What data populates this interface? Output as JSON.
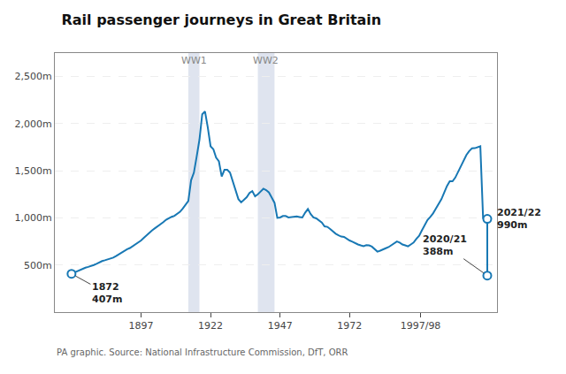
{
  "chart_data": {
    "type": "line",
    "title": "Rail passenger journeys in Great Britain",
    "source": "PA graphic. Source: National Infrastructure Commission, DfT, ORR",
    "xlim": [
      1866,
      2025
    ],
    "xticks": [
      1897,
      1922,
      1947,
      1972,
      {
        "value": 1997.5,
        "label": "1997/98"
      }
    ],
    "ylim": [
      0,
      2750
    ],
    "yticks": [
      {
        "value": 500,
        "label": "500m"
      },
      {
        "value": 1000,
        "label": "1,000m"
      },
      {
        "value": 1500,
        "label": "1,500m"
      },
      {
        "value": 2000,
        "label": "2,000m"
      },
      {
        "value": 2500,
        "label": "2,500m"
      }
    ],
    "grid": "y",
    "shaded_spans": [
      {
        "x": [
          1914,
          1918
        ],
        "label": "WW1",
        "color": "#b8c4dc"
      },
      {
        "x": [
          1939,
          1945
        ],
        "label": "WW2",
        "color": "#b8c4dc"
      }
    ],
    "series": [
      {
        "color": "#1878b4",
        "x": [
          1872,
          1873,
          1874,
          1875,
          1876,
          1877,
          1878,
          1879,
          1880,
          1881,
          1882,
          1883,
          1884,
          1885,
          1886,
          1887,
          1888,
          1889,
          1890,
          1891,
          1892,
          1893,
          1894,
          1895,
          1896,
          1897,
          1898,
          1899,
          1900,
          1901,
          1902,
          1903,
          1904,
          1905,
          1906,
          1907,
          1908,
          1909,
          1910,
          1911,
          1912,
          1913,
          1914,
          1915,
          1916,
          1917,
          1918,
          1919,
          1920,
          1921,
          1922,
          1923,
          1924,
          1925,
          1926,
          1927,
          1928,
          1929,
          1930,
          1931,
          1932,
          1933,
          1934,
          1935,
          1936,
          1937,
          1938,
          1939,
          1940,
          1941,
          1942,
          1943,
          1944,
          1945,
          1946,
          1947,
          1948,
          1949,
          1950,
          1951,
          1952,
          1953,
          1954,
          1955,
          1956,
          1957,
          1958,
          1959,
          1960,
          1961,
          1962,
          1963,
          1964,
          1965,
          1966,
          1967,
          1968,
          1969,
          1970,
          1971,
          1972,
          1973,
          1974,
          1975,
          1976,
          1977,
          1978,
          1979,
          1980,
          1981,
          1982,
          1983,
          1984,
          1985,
          1986,
          1987,
          1988,
          1989,
          1990,
          1991,
          1992,
          1993,
          1994,
          1995,
          1996,
          1997,
          1998,
          1999,
          2000,
          2001,
          2002,
          2003,
          2004,
          2005,
          2006,
          2007,
          2008,
          2009,
          2010,
          2011,
          2012,
          2013,
          2014,
          2015,
          2016,
          2017,
          2018,
          2019,
          2020
        ],
        "values": [
          407,
          420,
          435,
          450,
          462,
          472,
          480,
          487,
          500,
          513,
          528,
          542,
          550,
          558,
          567,
          578,
          595,
          615,
          635,
          655,
          668,
          680,
          700,
          718,
          738,
          760,
          788,
          818,
          845,
          868,
          890,
          910,
          932,
          955,
          980,
          1000,
          1012,
          1022,
          1040,
          1065,
          1100,
          1135,
          1180,
          1400,
          1480,
          1650,
          1830,
          2100,
          2130,
          1960,
          1760,
          1730,
          1640,
          1600,
          1440,
          1510,
          1510,
          1480,
          1380,
          1280,
          1200,
          1165,
          1190,
          1220,
          1265,
          1285,
          1230,
          1250,
          1280,
          1310,
          1295,
          1270,
          1215,
          1160,
          1000,
          1005,
          1020,
          1020,
          1005,
          1010,
          1015,
          1015,
          1010,
          1005,
          1055,
          1095,
          1040,
          1005,
          995,
          975,
          950,
          910,
          905,
          882,
          855,
          832,
          815,
          802,
          798,
          778,
          760,
          748,
          730,
          718,
          708,
          700,
          710,
          708,
          695,
          672,
          642,
          652,
          668,
          678,
          690,
          710,
          730,
          750,
          738,
          718,
          708,
          698,
          718,
          738,
          778,
          810,
          868,
          928,
          978,
          1010,
          1048,
          1098,
          1148,
          1198,
          1268,
          1338,
          1388,
          1388,
          1428,
          1488,
          1548,
          1608,
          1668,
          1710,
          1738,
          1740,
          1748,
          1760,
          990
        ]
      },
      {
        "color": "#1878b4",
        "x": [
          2021,
          2021.5
        ],
        "values": [
          388,
          388
        ]
      },
      {
        "color": "#1878b4",
        "x": [
          2021.5,
          2022
        ],
        "values": [
          990,
          990
        ]
      },
      {
        "color": "#1878b4",
        "x": [
          2021.5,
          2021.5
        ],
        "values": [
          388,
          990
        ]
      },
      {
        "type": "scatter",
        "marker": "open circle",
        "color": "#1878b4",
        "x": [
          1872,
          2021.5,
          2021.5
        ],
        "values": [
          407,
          388,
          990
        ]
      }
    ],
    "annotations": [
      {
        "text": "1872\n407m",
        "x": 1872,
        "y": 407
      },
      {
        "text": "2020/21\n388m",
        "x": 2021.5,
        "y": 388
      },
      {
        "text": "2021/22\n990m",
        "x": 2021.5,
        "y": 990
      }
    ]
  }
}
